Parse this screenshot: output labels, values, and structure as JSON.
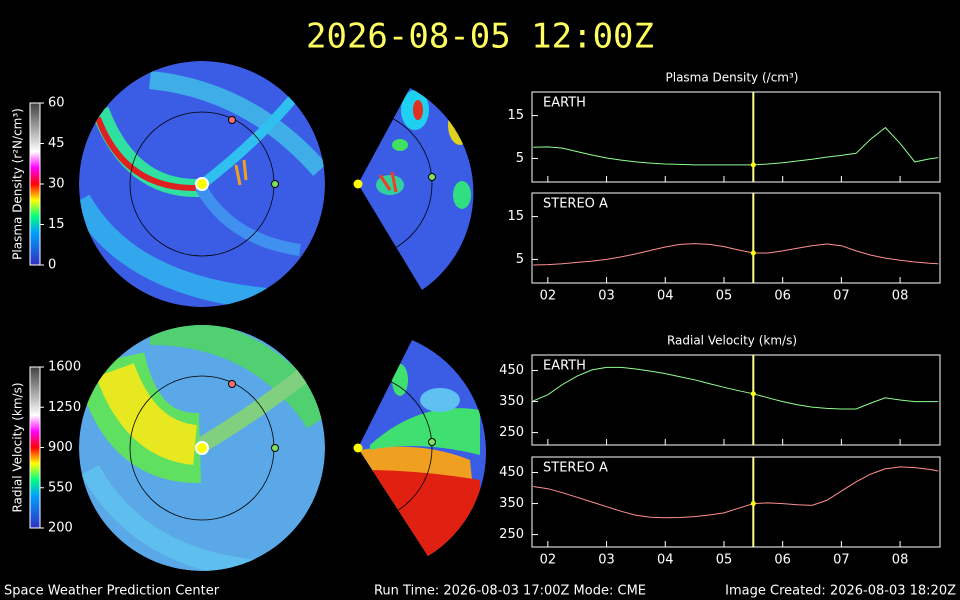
{
  "header": {
    "title": "2026-08-05 12:00Z"
  },
  "footer": {
    "left": "Space Weather Prediction Center",
    "center": "Run Time: 2026-08-03 17:00Z  Mode: CME",
    "right": "Image Created: 2026-08-03 18:20Z"
  },
  "chart_data": [
    {
      "type": "colorbar",
      "ylabel": "Plasma Density (r²N/cm³)",
      "ylim": [
        0,
        60
      ],
      "yticks": [
        0,
        15,
        30,
        45,
        60
      ]
    },
    {
      "type": "colorbar",
      "ylabel": "Radial Velocity (km/s)",
      "ylim": [
        200,
        1600
      ],
      "yticks": [
        200,
        550,
        900,
        1250,
        1600
      ]
    },
    {
      "type": "line",
      "title": "Plasma Density (/cm³)",
      "label": "EARTH",
      "color": "#90ff90",
      "x": [
        1.75,
        2,
        2.25,
        2.5,
        2.75,
        3,
        3.25,
        3.5,
        3.75,
        4,
        4.25,
        4.5,
        4.75,
        5,
        5.25,
        5.5,
        5.75,
        6,
        6.25,
        6.5,
        6.75,
        7,
        7.25,
        7.5,
        7.75,
        8,
        8.25,
        8.5,
        8.65
      ],
      "values": [
        7.6,
        7.7,
        7.4,
        6.6,
        5.8,
        5.1,
        4.6,
        4.2,
        3.9,
        3.7,
        3.6,
        3.5,
        3.5,
        3.5,
        3.5,
        3.5,
        3.7,
        4.0,
        4.4,
        4.8,
        5.3,
        5.7,
        6.2,
        9.5,
        12.2,
        8.5,
        4.2,
        4.9,
        5.2
      ],
      "xlim": [
        1.73,
        8.68
      ],
      "ylim": [
        -0.5,
        20.5
      ],
      "yticks": [
        5,
        15
      ],
      "time_marker": 5.5
    },
    {
      "type": "line",
      "label": "STEREO A",
      "color": "#ff9090",
      "x": [
        1.75,
        2,
        2.25,
        2.5,
        2.75,
        3,
        3.25,
        3.5,
        3.75,
        4,
        4.25,
        4.5,
        4.75,
        5,
        5.25,
        5.5,
        5.75,
        6,
        6.25,
        6.5,
        6.75,
        7,
        7.25,
        7.5,
        7.75,
        8,
        8.25,
        8.5,
        8.65
      ],
      "values": [
        3.7,
        3.8,
        4.0,
        4.3,
        4.6,
        5.0,
        5.6,
        6.3,
        7.1,
        7.9,
        8.5,
        8.7,
        8.5,
        8.0,
        7.2,
        6.5,
        6.5,
        7.0,
        7.6,
        8.2,
        8.6,
        8.2,
        7.0,
        6.0,
        5.3,
        4.8,
        4.4,
        4.1,
        4.0
      ],
      "xlim": [
        1.73,
        8.68
      ],
      "ylim": [
        -0.5,
        20.5
      ],
      "yticks": [
        5,
        15
      ],
      "time_marker": 5.5,
      "xticks": [
        {
          "value": 2,
          "label": "02"
        },
        {
          "value": 3,
          "label": "03"
        },
        {
          "value": 4,
          "label": "04"
        },
        {
          "value": 5,
          "label": "05"
        },
        {
          "value": 6,
          "label": "06"
        },
        {
          "value": 7,
          "label": "07"
        },
        {
          "value": 8,
          "label": "08"
        }
      ]
    },
    {
      "type": "line",
      "title": "Radial Velocity (km/s)",
      "label": "EARTH",
      "color": "#90ff90",
      "x": [
        1.75,
        2,
        2.25,
        2.5,
        2.75,
        3,
        3.25,
        3.5,
        3.75,
        4,
        4.25,
        4.5,
        4.75,
        5,
        5.25,
        5.5,
        5.75,
        6,
        6.25,
        6.5,
        6.75,
        7,
        7.25,
        7.5,
        7.75,
        8,
        8.25,
        8.5,
        8.65
      ],
      "values": [
        352,
        372,
        405,
        432,
        452,
        460,
        460,
        455,
        448,
        440,
        430,
        420,
        408,
        396,
        385,
        375,
        362,
        350,
        340,
        332,
        328,
        326,
        326,
        345,
        362,
        355,
        350,
        350,
        350
      ],
      "xlim": [
        1.73,
        8.68
      ],
      "ylim": [
        210,
        500
      ],
      "yticks": [
        250,
        350,
        450
      ],
      "time_marker": 5.5
    },
    {
      "type": "line",
      "label": "STEREO A",
      "color": "#ff9090",
      "x": [
        1.75,
        2,
        2.25,
        2.5,
        2.75,
        3,
        3.25,
        3.5,
        3.75,
        4,
        4.25,
        4.5,
        4.75,
        5,
        5.25,
        5.5,
        5.75,
        6,
        6.25,
        6.5,
        6.75,
        7,
        7.25,
        7.5,
        7.75,
        8,
        8.25,
        8.5,
        8.65
      ],
      "values": [
        405,
        398,
        385,
        370,
        355,
        340,
        325,
        312,
        306,
        304,
        305,
        308,
        313,
        320,
        335,
        350,
        352,
        350,
        346,
        344,
        360,
        390,
        420,
        445,
        462,
        468,
        466,
        460,
        455
      ],
      "xlim": [
        1.73,
        8.68
      ],
      "ylim": [
        210,
        500
      ],
      "yticks": [
        250,
        350,
        450
      ],
      "time_marker": 5.5,
      "xticks": [
        {
          "value": 2,
          "label": "02"
        },
        {
          "value": 3,
          "label": "03"
        },
        {
          "value": 4,
          "label": "04"
        },
        {
          "value": 5,
          "label": "05"
        },
        {
          "value": 6,
          "label": "06"
        },
        {
          "value": 7,
          "label": "07"
        },
        {
          "value": 8,
          "label": "08"
        }
      ]
    }
  ]
}
